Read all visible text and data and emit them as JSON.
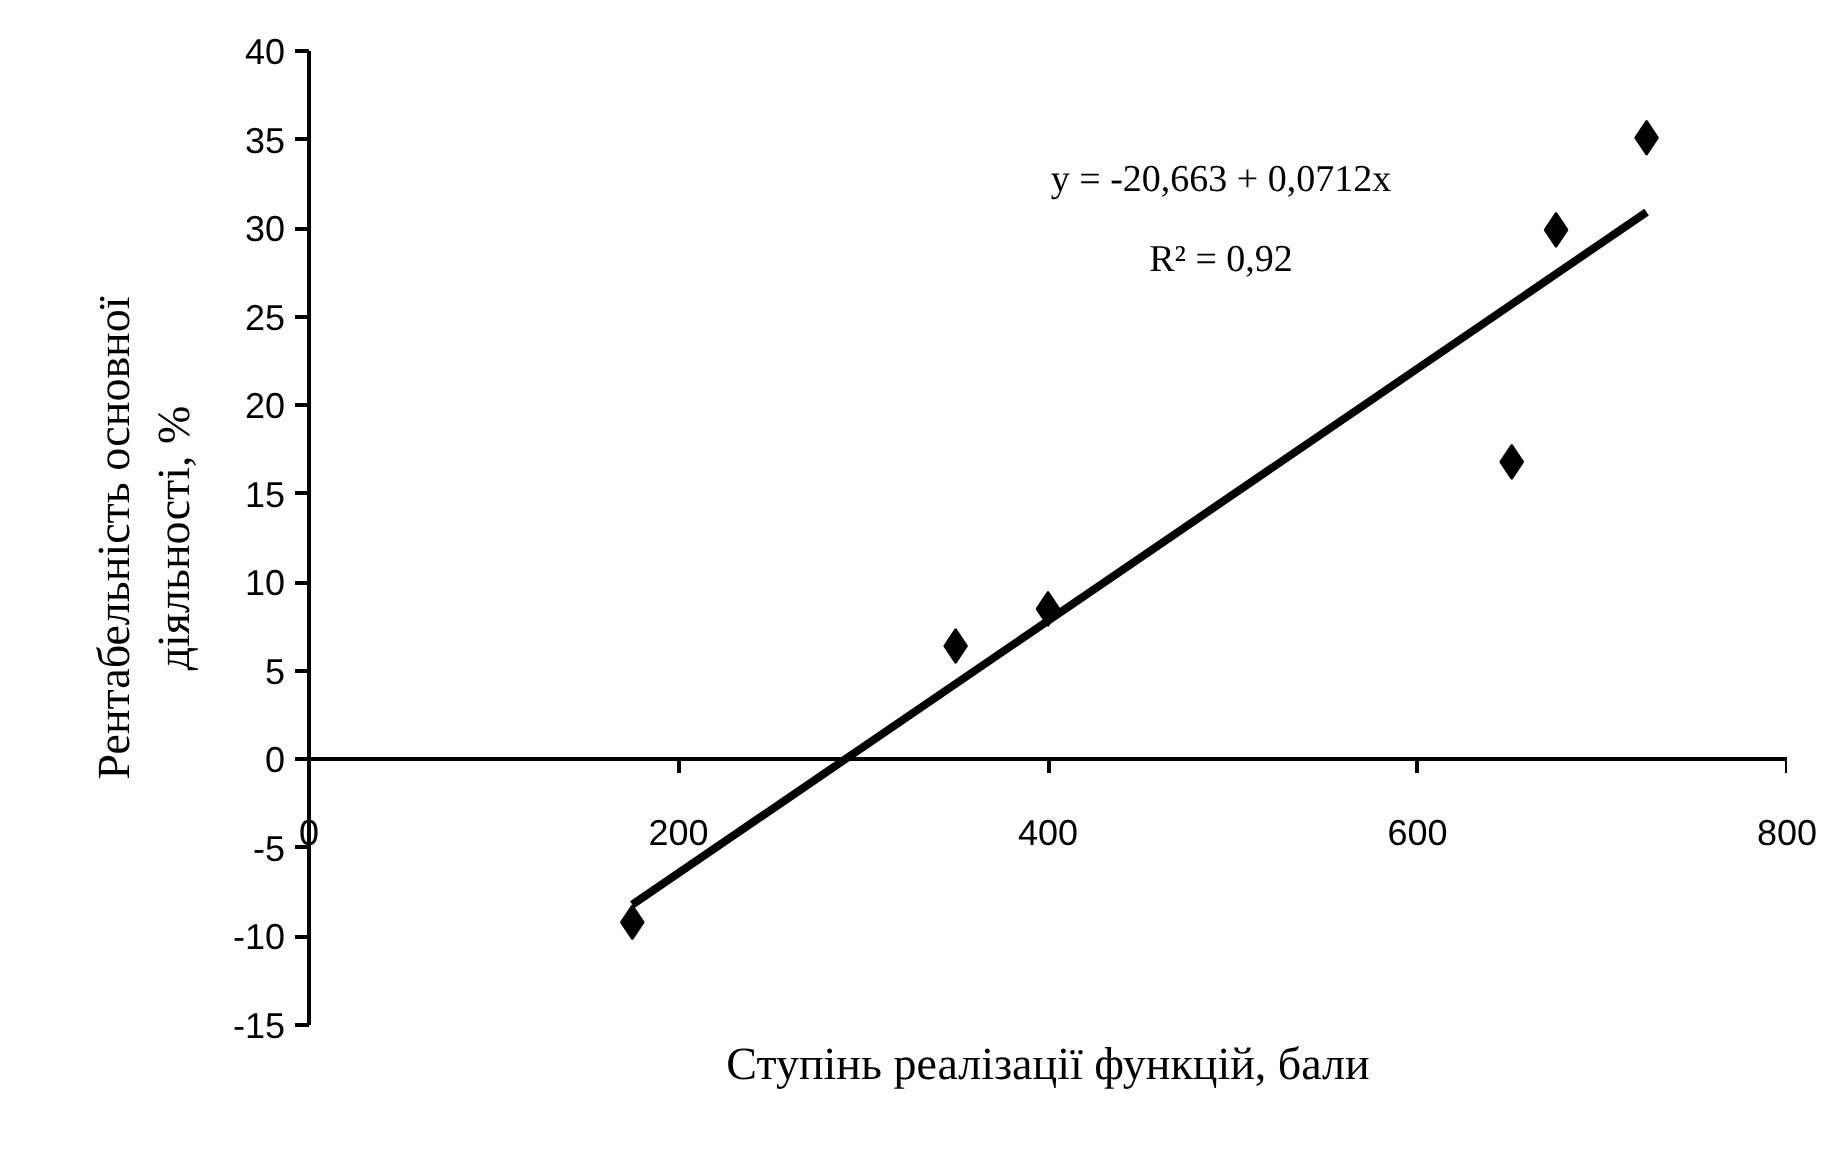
{
  "chart_data": {
    "type": "scatter",
    "xlabel": "Ступінь реалізації функцій, бали",
    "ylabel": "Рентабельність основної\nдіяльності, %",
    "x": [
      175,
      350,
      400,
      651,
      675,
      724
    ],
    "series": [
      {
        "color": "#000000",
        "marker": "diamond",
        "values": [
          -9.2,
          6.4,
          8.5,
          16.8,
          29.9,
          35.1
        ]
      },
      {
        "type": "line",
        "color": "#000000",
        "x": [
          175,
          724
        ],
        "values": [
          -8.2,
          30.9
        ],
        "line_style": "solid",
        "marker": "none"
      }
    ],
    "annotations": [
      "y = -20,663 + 0,0712x",
      "R² = 0,92"
    ],
    "xlim": [
      0,
      800
    ],
    "xticks": [
      0,
      200,
      400,
      600,
      800
    ],
    "ylim": [
      -15,
      40
    ],
    "yticks": [
      -15,
      -10,
      -5,
      0,
      5,
      10,
      15,
      20,
      25,
      30,
      35,
      40
    ],
    "grid": false
  }
}
